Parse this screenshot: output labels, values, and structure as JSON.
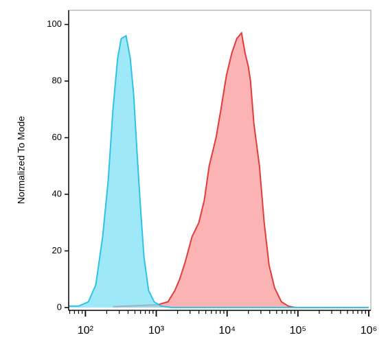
{
  "chart_data": {
    "type": "area",
    "y_label": "Normalized To Mode",
    "xscale": "log",
    "xlim": [
      58,
      1070000
    ],
    "ylim": [
      -1,
      105
    ],
    "xticks": [
      {
        "value": 100,
        "label": "10²"
      },
      {
        "value": 1000,
        "label": "10³"
      },
      {
        "value": 10000,
        "label": "10⁴"
      },
      {
        "value": 100000,
        "label": "10⁵"
      },
      {
        "value": 1000000,
        "label": "10⁶"
      }
    ],
    "yticks": [
      0,
      20,
      40,
      60,
      80,
      100
    ],
    "series": [
      {
        "color": "#e33b3b",
        "fill": "#f99a9a",
        "x": [
          244,
          1045,
          1460,
          1830,
          2140,
          2560,
          3200,
          4000,
          4780,
          5590,
          6990,
          8180,
          9780,
          11700,
          13700,
          16000,
          17900,
          20000,
          21400,
          23900,
          28600,
          33400,
          39100,
          46800,
          58500,
          73200,
          91500,
          1000000
        ],
        "values": [
          0.3,
          1,
          2,
          6,
          10,
          16,
          25,
          30,
          38,
          50,
          60,
          70,
          82,
          90,
          95,
          97,
          90,
          85,
          80,
          65,
          50,
          30,
          15,
          7,
          2,
          0.5,
          0,
          0
        ]
      },
      {
        "color": "#2cc3e6",
        "fill": "#7fe0f5",
        "x": [
          58,
          80,
          110,
          140,
          175,
          210,
          245,
          285,
          320,
          375,
          430,
          480,
          535,
          600,
          670,
          780,
          935,
          1170,
          1640,
          1000000
        ],
        "values": [
          0.5,
          0.5,
          2,
          8,
          25,
          45,
          70,
          88,
          95,
          96,
          88,
          75,
          55,
          35,
          18,
          6,
          2,
          0.5,
          0,
          0
        ]
      }
    ]
  }
}
